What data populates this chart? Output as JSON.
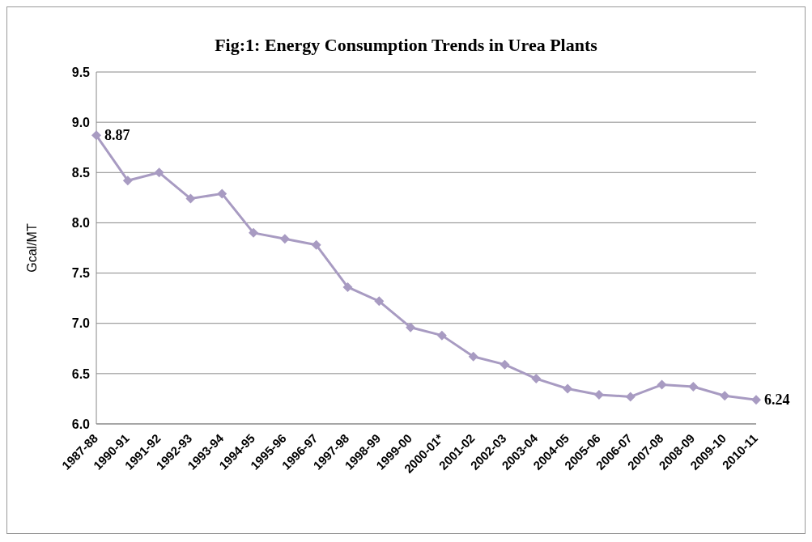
{
  "chart_data": {
    "type": "line",
    "title": "Fig:1: Energy Consumption Trends in Urea Plants",
    "ylabel": "Gcal/MT",
    "categories": [
      "1987-88",
      "1990-91",
      "1991-92",
      "1992-93",
      "1993-94",
      "1994-95",
      "1995-96",
      "1996-97",
      "1997-98",
      "1998-99",
      "1999-00",
      "2000-01*",
      "2001-02",
      "2002-03",
      "2003-04",
      "2004-05",
      "2005-06",
      "2006-07",
      "2007-08",
      "2008-09",
      "2009-10",
      "2010-11"
    ],
    "series": [
      {
        "color": "#a89bc2",
        "values": [
          8.87,
          8.42,
          8.5,
          8.24,
          8.29,
          7.9,
          7.84,
          7.78,
          7.36,
          7.22,
          6.96,
          6.88,
          6.67,
          6.59,
          6.45,
          6.35,
          6.29,
          6.27,
          6.39,
          6.37,
          6.28,
          6.24
        ],
        "value_labels": [
          "8.87",
          null,
          null,
          null,
          null,
          null,
          null,
          null,
          null,
          null,
          null,
          null,
          null,
          null,
          null,
          null,
          null,
          null,
          null,
          null,
          null,
          "6.24"
        ]
      }
    ],
    "ylim": [
      6.0,
      9.5
    ],
    "yticks": [
      {
        "value": 6.0,
        "label": "6.0"
      },
      {
        "value": 6.5,
        "label": "6.5"
      },
      {
        "value": 7.0,
        "label": "7.0"
      },
      {
        "value": 7.5,
        "label": "7.5"
      },
      {
        "value": 8.0,
        "label": "8.0"
      },
      {
        "value": 8.5,
        "label": "8.5"
      },
      {
        "value": 9.0,
        "label": "9.0"
      },
      {
        "value": 9.5,
        "label": "9.5"
      }
    ],
    "grid": "y",
    "marker": "diamond",
    "line_style": "solid",
    "legend": false
  }
}
